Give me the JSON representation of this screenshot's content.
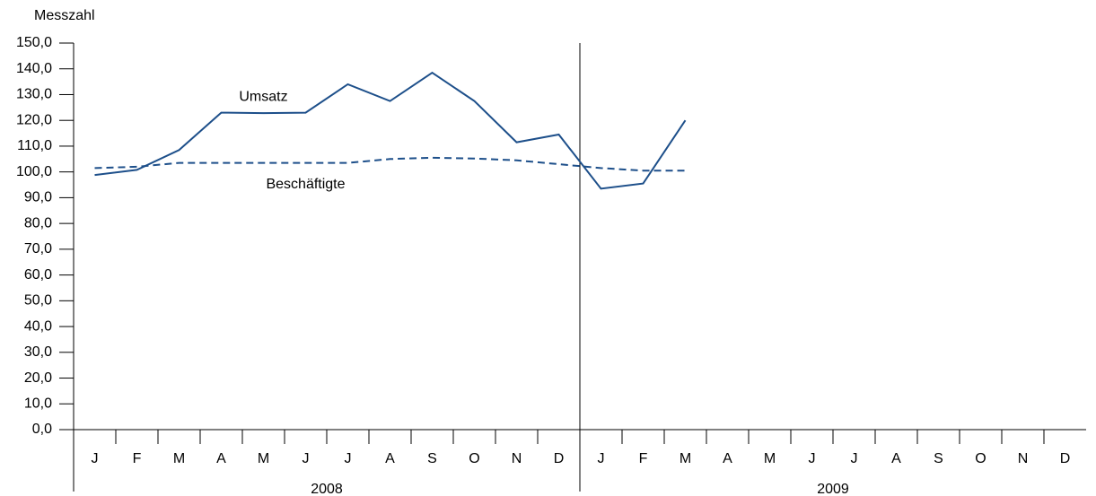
{
  "chart_data": {
    "type": "line",
    "y_label": "Messzahl",
    "categories": [
      "J",
      "F",
      "M",
      "A",
      "M",
      "J",
      "J",
      "A",
      "S",
      "O",
      "N",
      "D",
      "J",
      "F",
      "M",
      "A",
      "M",
      "J",
      "J",
      "A",
      "S",
      "O",
      "N",
      "D"
    ],
    "groups": [
      "2008",
      "2009"
    ],
    "series": [
      {
        "name": "Umsatz",
        "color": "#1d4f8a",
        "line_style": "solid",
        "values": [
          98.8,
          100.8,
          108.5,
          123,
          122.8,
          123,
          134,
          127.5,
          138.5,
          127.5,
          111.5,
          114.5,
          93.5,
          95.5,
          120,
          null,
          null,
          null,
          null,
          null,
          null,
          null,
          null,
          null
        ]
      },
      {
        "name": "Beschäftigte",
        "color": "#1d4f8a",
        "line_style": "dashed",
        "values": [
          101.5,
          102,
          103.5,
          103.5,
          103.5,
          103.5,
          103.5,
          105,
          105.5,
          105.2,
          104.5,
          103,
          101.5,
          100.5,
          100.5,
          null,
          null,
          null,
          null,
          null,
          null,
          null,
          null,
          null
        ]
      }
    ],
    "ylim": [
      0,
      150
    ],
    "yticks": [
      {
        "value": 0,
        "label": "0,0"
      },
      {
        "value": 10,
        "label": "10,0"
      },
      {
        "value": 20,
        "label": "20,0"
      },
      {
        "value": 30,
        "label": "30,0"
      },
      {
        "value": 40,
        "label": "40,0"
      },
      {
        "value": 50,
        "label": "50,0"
      },
      {
        "value": 60,
        "label": "60,0"
      },
      {
        "value": 70,
        "label": "70,0"
      },
      {
        "value": 80,
        "label": "80,0"
      },
      {
        "value": 90,
        "label": "90,0"
      },
      {
        "value": 100,
        "label": "100,0"
      },
      {
        "value": 110,
        "label": "110,0"
      },
      {
        "value": 120,
        "label": "120,0"
      },
      {
        "value": 130,
        "label": "130,0"
      },
      {
        "value": 140,
        "label": "140,0"
      },
      {
        "value": 150,
        "label": "150,0"
      }
    ],
    "grid": false
  }
}
